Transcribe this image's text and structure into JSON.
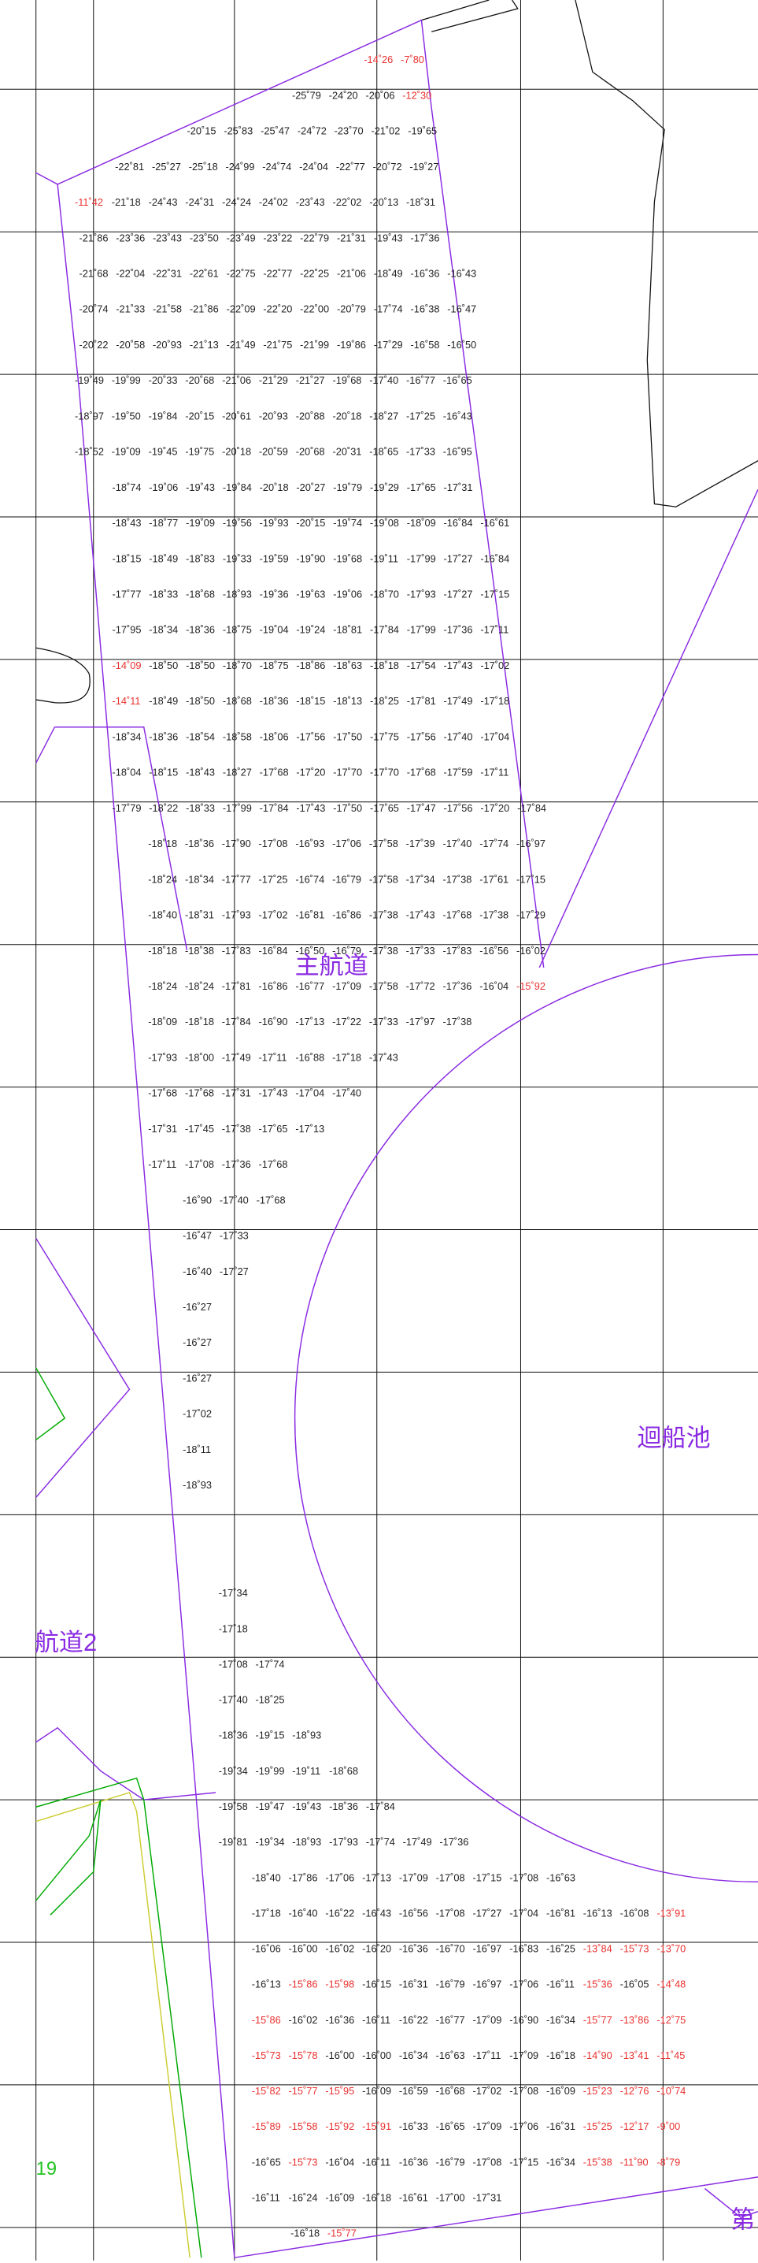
{
  "labels": {
    "main_channel": "主航道",
    "turning_basin": "迴船池",
    "channel2": "航道2",
    "marker": "19",
    "corner": "第"
  },
  "soundings": {
    "red": "#e8312f",
    "rows": [
      [
        {
          "text": "-14˚26",
          "color": "red"
        },
        {
          "text": "-7˚80",
          "color": "red"
        }
      ],
      [
        "-25˚79",
        "-24˚20",
        "-20˚06",
        {
          "text": "-12˚30",
          "color": "red"
        }
      ],
      [
        "-20˚15",
        "-25˚83",
        "-25˚47",
        "-24˚72",
        "-23˚70",
        "-21˚02",
        "-19˚65"
      ],
      [
        "-22˚81",
        "-25˚27",
        "-25˚18",
        "-24˚99",
        "-24˚74",
        "-24˚04",
        "-22˚77",
        "-20˚72",
        "-19˚27"
      ],
      [
        {
          "text": "-11˚42",
          "color": "red"
        },
        "-21˚18",
        "-24˚43",
        "-24˚31",
        "-24˚24",
        "-24˚02",
        "-23˚43",
        "-22˚02",
        "-20˚13",
        "-18˚31"
      ],
      [
        "-21˚86",
        "-23˚36",
        "-23˚43",
        "-23˚50",
        "-23˚49",
        "-23˚22",
        "-22˚79",
        "-21˚31",
        "-19˚43",
        "-17˚36"
      ],
      [
        "-21˚68",
        "-22˚04",
        "-22˚31",
        "-22˚61",
        "-22˚75",
        "-22˚77",
        "-22˚25",
        "-21˚06",
        "-18˚49",
        "-16˚36",
        "-16˚43"
      ],
      [
        "-20˚74",
        "-21˚33",
        "-21˚58",
        "-21˚86",
        "-22˚09",
        "-22˚20",
        "-22˚00",
        "-20˚79",
        "-17˚74",
        "-16˚38",
        "-16˚47"
      ],
      [
        "-20˚22",
        "-20˚58",
        "-20˚93",
        "-21˚13",
        "-21˚49",
        "-21˚75",
        "-21˚99",
        "-19˚86",
        "-17˚29",
        "-16˚58",
        "-16˚50"
      ],
      [
        "-19˚49",
        "-19˚99",
        "-20˚33",
        "-20˚68",
        "-21˚06",
        "-21˚29",
        "-21˚27",
        "-19˚68",
        "-17˚40",
        "-16˚77",
        "-16˚65"
      ],
      [
        "-18˚97",
        "-19˚50",
        "-19˚84",
        "-20˚15",
        "-20˚61",
        "-20˚93",
        "-20˚88",
        "-20˚18",
        "-18˚27",
        "-17˚25",
        "-16˚43"
      ],
      [
        "-18˚52",
        "-19˚09",
        "-19˚45",
        "-19˚75",
        "-20˚18",
        "-20˚59",
        "-20˚68",
        "-20˚31",
        "-18˚65",
        "-17˚33",
        "-16˚95"
      ],
      [
        "-18˚74",
        "-19˚06",
        "-19˚43",
        "-19˚84",
        "-20˚18",
        "-20˚27",
        "-19˚79",
        "-19˚29",
        "-17˚65",
        "-17˚31"
      ],
      [
        "-18˚43",
        "-18˚77",
        "-19˚09",
        "-19˚56",
        "-19˚93",
        "-20˚15",
        "-19˚74",
        "-19˚08",
        "-18˚09",
        "-16˚84",
        "-16˚61"
      ],
      [
        "-18˚15",
        "-18˚49",
        "-18˚83",
        "-19˚33",
        "-19˚59",
        "-19˚90",
        "-19˚68",
        "-19˚11",
        "-17˚99",
        "-17˚27",
        "-16˚84"
      ],
      [
        "-17˚77",
        "-18˚33",
        "-18˚68",
        "-18˚93",
        "-19˚36",
        "-19˚63",
        "-19˚06",
        "-18˚70",
        "-17˚93",
        "-17˚27",
        "-17˚15"
      ],
      [
        "-17˚95",
        "-18˚34",
        "-18˚36",
        "-18˚75",
        "-19˚04",
        "-19˚24",
        "-18˚81",
        "-17˚84",
        "-17˚99",
        "-17˚36",
        "-17˚11"
      ],
      [
        {
          "text": "-14˚09",
          "color": "red"
        },
        "-18˚50",
        "-18˚50",
        "-18˚70",
        "-18˚75",
        "-18˚86",
        "-18˚63",
        "-18˚18",
        "-17˚54",
        "-17˚43",
        "-17˚02"
      ],
      [
        {
          "text": "-14˚11",
          "color": "red"
        },
        "-18˚49",
        "-18˚50",
        "-18˚68",
        "-18˚36",
        "-18˚15",
        "-18˚13",
        "-18˚25",
        "-17˚81",
        "-17˚49",
        "-17˚18"
      ],
      [
        "-18˚34",
        "-18˚36",
        "-18˚54",
        "-18˚58",
        "-18˚06",
        "-17˚56",
        "-17˚50",
        "-17˚75",
        "-17˚56",
        "-17˚40",
        "-17˚04"
      ],
      [
        "-18˚04",
        "-18˚15",
        "-18˚43",
        "-18˚27",
        "-17˚68",
        "-17˚20",
        "-17˚70",
        "-17˚70",
        "-17˚68",
        "-17˚59",
        "-17˚11"
      ],
      [
        "-17˚79",
        "-18˚22",
        "-18˚33",
        "-17˚99",
        "-17˚84",
        "-17˚43",
        "-17˚50",
        "-17˚65",
        "-17˚47",
        "-17˚56",
        "-17˚20",
        "-17˚84"
      ],
      [
        "-18˚18",
        "-18˚36",
        "-17˚90",
        "-17˚08",
        "-16˚93",
        "-17˚06",
        "-17˚58",
        "-17˚39",
        "-17˚40",
        "-17˚74",
        "-16˚97"
      ],
      [
        "-18˚24",
        "-18˚34",
        "-17˚77",
        "-17˚25",
        "-16˚74",
        "-16˚79",
        "-17˚58",
        "-17˚34",
        "-17˚38",
        "-17˚61",
        "-17˚15"
      ],
      [
        "-18˚40",
        "-18˚31",
        "-17˚93",
        "-17˚02",
        "-16˚81",
        "-16˚86",
        "-17˚38",
        "-17˚43",
        "-17˚68",
        "-17˚38",
        "-17˚29"
      ],
      [
        "-18˚18",
        "-18˚38",
        "-17˚83",
        "-16˚84",
        "-16˚50",
        "-16˚79",
        "-17˚38",
        "-17˚33",
        "-17˚83",
        "-16˚56",
        "-16˚02"
      ],
      [
        "-18˚24",
        "-18˚24",
        "-17˚81",
        "-16˚86",
        "-16˚77",
        "-17˚09",
        "-17˚58",
        "-17˚72",
        "-17˚36",
        "-16˚04",
        {
          "text": "-15˚92",
          "color": "red"
        }
      ],
      [
        "-18˚09",
        "-18˚18",
        "-17˚84",
        "-16˚90",
        "-17˚13",
        "-17˚22",
        "-17˚33",
        "-17˚97",
        "-17˚38"
      ],
      [
        "-17˚93",
        "-18˚00",
        "-17˚49",
        "-17˚11",
        "-16˚88",
        "-17˚18",
        "-17˚43"
      ],
      [
        "-17˚68",
        "-17˚68",
        "-17˚31",
        "-17˚43",
        "-17˚04",
        "-17˚40"
      ],
      [
        "-17˚31",
        "-17˚45",
        "-17˚38",
        "-17˚65",
        "-17˚13"
      ],
      [
        "-17˚11",
        "-17˚08",
        "-17˚36",
        "-17˚68"
      ],
      [
        "-16˚90",
        "-17˚40",
        "-17˚68"
      ],
      [
        "-16˚47",
        "-17˚33"
      ],
      [
        "-16˚40",
        "-17˚27"
      ],
      [
        "-16˚27"
      ],
      [
        "-16˚27"
      ],
      [
        "-16˚27"
      ],
      [
        "-17˚02"
      ],
      [
        "-18˚11"
      ],
      [
        "-18˚93"
      ],
      [
        "-17˚34"
      ],
      [
        "-17˚18"
      ],
      [
        "-17˚08",
        "-17˚74"
      ],
      [
        "-17˚40",
        "-18˚25"
      ],
      [
        "-18˚36",
        "-19˚15",
        "-18˚93"
      ],
      [
        "-19˚34",
        "-19˚99",
        "-19˚11",
        "-18˚68"
      ],
      [
        "-19˚58",
        "-19˚47",
        "-19˚43",
        "-18˚36",
        "-17˚84"
      ],
      [
        "-19˚81",
        "-19˚34",
        "-18˚93",
        "-17˚93",
        "-17˚74",
        "-17˚49",
        "-17˚36"
      ],
      [
        "-18˚40",
        "-17˚86",
        "-17˚06",
        "-17˚13",
        "-17˚09",
        "-17˚08",
        "-17˚15",
        "-17˚08",
        "-16˚63"
      ],
      [
        "-17˚18",
        "-16˚40",
        "-16˚22",
        "-16˚43",
        "-16˚56",
        "-17˚08",
        "-17˚27",
        "-17˚04",
        "-16˚81",
        "-16˚13",
        "-16˚08",
        {
          "text": "-13˚91",
          "color": "red"
        }
      ],
      [
        "-16˚06",
        "-16˚00",
        "-16˚02",
        "-16˚20",
        "-16˚36",
        "-16˚70",
        "-16˚97",
        "-16˚83",
        "-16˚25",
        {
          "text": "-13˚84",
          "color": "red"
        },
        {
          "text": "-15˚73",
          "color": "red"
        },
        {
          "text": "-13˚70",
          "color": "red"
        }
      ],
      [
        "-16˚13",
        {
          "text": "-15˚86",
          "color": "red"
        },
        {
          "text": "-15˚98",
          "color": "red"
        },
        "-16˚15",
        "-16˚31",
        "-16˚79",
        "-16˚97",
        "-17˚06",
        "-16˚11",
        {
          "text": "-15˚36",
          "color": "red"
        },
        "-16˚05",
        {
          "text": "-14˚48",
          "color": "red"
        }
      ],
      [
        {
          "text": "-15˚86",
          "color": "red"
        },
        "-16˚02",
        "-16˚36",
        "-16˚11",
        "-16˚22",
        "-16˚77",
        "-17˚09",
        "-16˚90",
        "-16˚34",
        {
          "text": "-15˚77",
          "color": "red"
        },
        {
          "text": "-13˚86",
          "color": "red"
        },
        {
          "text": "-12˚75",
          "color": "red"
        }
      ],
      [
        {
          "text": "-15˚73",
          "color": "red"
        },
        {
          "text": "-15˚78",
          "color": "red"
        },
        "-16˚00",
        "-16˚00",
        "-16˚34",
        "-16˚63",
        "-17˚11",
        "-17˚09",
        "-16˚18",
        {
          "text": "-14˚90",
          "color": "red"
        },
        {
          "text": "-13˚41",
          "color": "red"
        },
        {
          "text": "-11˚45",
          "color": "red"
        }
      ],
      [
        {
          "text": "-15˚82",
          "color": "red"
        },
        {
          "text": "-15˚77",
          "color": "red"
        },
        {
          "text": "-15˚95",
          "color": "red"
        },
        "-16˚09",
        "-16˚59",
        "-16˚68",
        "-17˚02",
        "-17˚08",
        "-16˚09",
        {
          "text": "-15˚23",
          "color": "red"
        },
        {
          "text": "-12˚76",
          "color": "red"
        },
        {
          "text": "-10˚74",
          "color": "red"
        }
      ],
      [
        {
          "text": "-15˚89",
          "color": "red"
        },
        {
          "text": "-15˚58",
          "color": "red"
        },
        {
          "text": "-15˚92",
          "color": "red"
        },
        {
          "text": "-15˚91",
          "color": "red"
        },
        "-16˚33",
        "-16˚65",
        "-17˚09",
        "-17˚06",
        "-16˚31",
        {
          "text": "-15˚25",
          "color": "red"
        },
        {
          "text": "-12˚17",
          "color": "red"
        },
        {
          "text": "-9˚00",
          "color": "red"
        }
      ],
      [
        "-16˚65",
        {
          "text": "-15˚73",
          "color": "red"
        },
        "-16˚04",
        "-16˚11",
        "-16˚36",
        "-16˚79",
        "-17˚08",
        "-17˚15",
        "-16˚34",
        {
          "text": "-15˚38",
          "color": "red"
        },
        {
          "text": "-11˚90",
          "color": "red"
        },
        {
          "text": "-8˚79",
          "color": "red"
        }
      ],
      [
        "-16˚11",
        "-16˚24",
        "-16˚09",
        "-16˚18",
        "-16˚61",
        "-17˚00",
        "-17˚31"
      ],
      [
        "-16˚18",
        {
          "text": "-15˚77",
          "color": "red"
        }
      ]
    ]
  }
}
